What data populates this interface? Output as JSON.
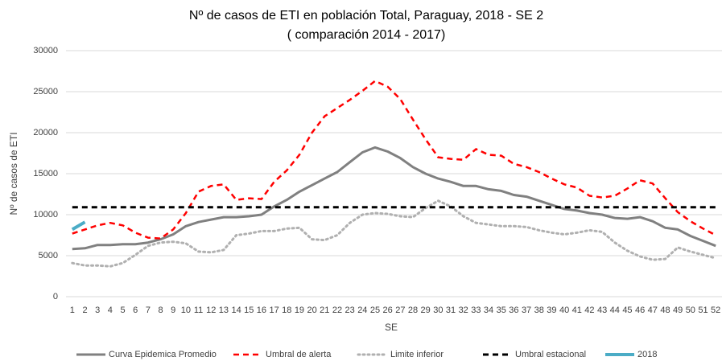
{
  "chart_data": {
    "type": "line",
    "title": "Nº de casos de ETI en población Total, Paraguay, 2018 - SE 2",
    "subtitle": "( comparación 2014 - 2017)",
    "x_label": "SE",
    "y_label": "Nº de casos de ETI",
    "categories": [
      1,
      2,
      3,
      4,
      5,
      6,
      7,
      8,
      9,
      10,
      11,
      12,
      13,
      14,
      15,
      16,
      17,
      18,
      19,
      20,
      21,
      22,
      23,
      24,
      25,
      26,
      27,
      28,
      29,
      30,
      31,
      32,
      33,
      34,
      35,
      36,
      37,
      38,
      39,
      40,
      41,
      42,
      43,
      44,
      45,
      46,
      47,
      48,
      49,
      50,
      51,
      52
    ],
    "ylim": [
      0,
      30000
    ],
    "yticks": [
      0,
      5000,
      10000,
      15000,
      20000,
      25000,
      30000
    ],
    "grid": true,
    "legend": "bottom",
    "series": [
      {
        "name": "Curva Epidemica Promedio",
        "color": "#808080",
        "dash": "solid",
        "width": 3,
        "values": [
          5800,
          5900,
          6300,
          6300,
          6400,
          6400,
          6600,
          7000,
          7600,
          8600,
          9100,
          9400,
          9700,
          9700,
          9800,
          10000,
          11000,
          11800,
          12800,
          13600,
          14400,
          15200,
          16400,
          17600,
          18200,
          17700,
          16900,
          15800,
          15000,
          14400,
          14000,
          13500,
          13500,
          13100,
          12900,
          12400,
          12200,
          11700,
          11200,
          10700,
          10500,
          10200,
          10000,
          9600,
          9500,
          9700,
          9200,
          8400,
          8200,
          7400,
          6800,
          6200
        ]
      },
      {
        "name": "Umbral de alerta",
        "color": "#ff0000",
        "dash": "dashed",
        "width": 2.5,
        "values": [
          7700,
          8200,
          8700,
          9000,
          8700,
          7800,
          7200,
          7100,
          8200,
          10200,
          12800,
          13500,
          13700,
          11800,
          12000,
          11900,
          14000,
          15400,
          17300,
          20000,
          22000,
          23000,
          24000,
          25100,
          26300,
          25600,
          24100,
          21600,
          19200,
          17000,
          16800,
          16700,
          18000,
          17300,
          17200,
          16200,
          15800,
          15200,
          14400,
          13700,
          13300,
          12300,
          12100,
          12300,
          13200,
          14200,
          13800,
          12000,
          10300,
          9200,
          8300,
          7500
        ]
      },
      {
        "name": "Limite inferior",
        "color": "#b0b0b0",
        "dash": "dotted",
        "width": 3,
        "values": [
          4100,
          3800,
          3800,
          3700,
          4100,
          5100,
          6200,
          6600,
          6700,
          6500,
          5500,
          5400,
          5700,
          7500,
          7700,
          8000,
          8000,
          8300,
          8400,
          7000,
          6900,
          7500,
          9000,
          10000,
          10200,
          10100,
          9800,
          9700,
          10800,
          11700,
          11000,
          9800,
          9000,
          8800,
          8600,
          8600,
          8500,
          8100,
          7800,
          7600,
          7800,
          8100,
          7900,
          6600,
          5600,
          4900,
          4500,
          4600,
          6000,
          5500,
          5100,
          4700
        ]
      },
      {
        "name": "Umbral estacional",
        "color": "#000000",
        "dash": "dashed",
        "width": 3,
        "values": [
          10900,
          10900,
          10900,
          10900,
          10900,
          10900,
          10900,
          10900,
          10900,
          10900,
          10900,
          10900,
          10900,
          10900,
          10900,
          10900,
          10900,
          10900,
          10900,
          10900,
          10900,
          10900,
          10900,
          10900,
          10900,
          10900,
          10900,
          10900,
          10900,
          10900,
          10900,
          10900,
          10900,
          10900,
          10900,
          10900,
          10900,
          10900,
          10900,
          10900,
          10900,
          10900,
          10900,
          10900,
          10900,
          10900,
          10900,
          10900,
          10900,
          10900,
          10900,
          10900
        ]
      },
      {
        "name": "2018",
        "color": "#4bacc6",
        "dash": "solid",
        "width": 4,
        "values": [
          8200,
          9100,
          null,
          null,
          null,
          null,
          null,
          null,
          null,
          null,
          null,
          null,
          null,
          null,
          null,
          null,
          null,
          null,
          null,
          null,
          null,
          null,
          null,
          null,
          null,
          null,
          null,
          null,
          null,
          null,
          null,
          null,
          null,
          null,
          null,
          null,
          null,
          null,
          null,
          null,
          null,
          null,
          null,
          null,
          null,
          null,
          null,
          null,
          null,
          null,
          null,
          null
        ]
      }
    ]
  }
}
